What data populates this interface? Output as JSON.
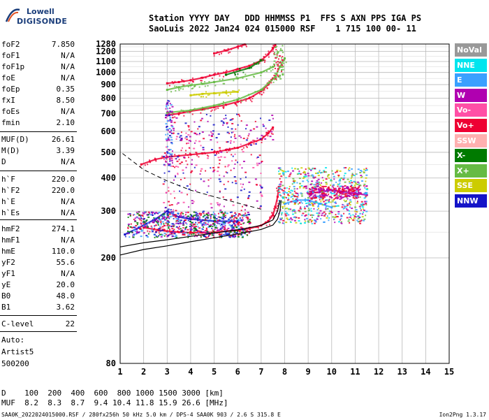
{
  "logo": {
    "top": "Lowell",
    "bottom": "DIGISONDE",
    "icon": "digisonde-logo-icon"
  },
  "header": {
    "line1": "Station YYYY DAY   DDD HHMMSS P1  FFS S AXN PPS IGA PS",
    "line2": "SaoLuis 2022 Jan24 024 015000 RSF    1 715 100 00- 11"
  },
  "params": [
    {
      "name": "foF2",
      "value": "7.850"
    },
    {
      "name": "foF1",
      "value": "N/A"
    },
    {
      "name": "foF1p",
      "value": "N/A"
    },
    {
      "name": "foE",
      "value": "N/A"
    },
    {
      "name": "foEp",
      "value": "0.35"
    },
    {
      "name": "fxI",
      "value": "8.50"
    },
    {
      "name": "foEs",
      "value": "N/A"
    },
    {
      "name": "fmin",
      "value": "2.10"
    },
    {
      "name": "MUF(D)",
      "value": "26.61"
    },
    {
      "name": "M(D)",
      "value": "3.39"
    },
    {
      "name": "D",
      "value": "N/A"
    },
    {
      "name": "h`F",
      "value": "220.0"
    },
    {
      "name": "h`F2",
      "value": "220.0"
    },
    {
      "name": "h`E",
      "value": "N/A"
    },
    {
      "name": "h`Es",
      "value": "N/A"
    },
    {
      "name": "hmF2",
      "value": "274.1"
    },
    {
      "name": "hmF1",
      "value": "N/A"
    },
    {
      "name": "hmE",
      "value": "110.0"
    },
    {
      "name": "yF2",
      "value": "55.6"
    },
    {
      "name": "yF1",
      "value": "N/A"
    },
    {
      "name": "yE",
      "value": "20.0"
    },
    {
      "name": "B0",
      "value": "48.0"
    },
    {
      "name": "B1",
      "value": "3.62"
    },
    {
      "name": "C-level",
      "value": "22"
    }
  ],
  "auto": {
    "label": "Auto:",
    "artist": "Artist5",
    "code": "500200"
  },
  "legend": [
    {
      "label": "NoVal",
      "color": "#999999"
    },
    {
      "label": "NNE",
      "color": "#00e5ee"
    },
    {
      "label": "E",
      "color": "#3aa0ff"
    },
    {
      "label": "W",
      "color": "#b000b0"
    },
    {
      "label": "Vo-",
      "color": "#ff4fa6"
    },
    {
      "label": "Vo+",
      "color": "#ee0033"
    },
    {
      "label": "SSW",
      "color": "#ffb0b0"
    },
    {
      "label": "X-",
      "color": "#007a00"
    },
    {
      "label": "X+",
      "color": "#66bb44"
    },
    {
      "label": "SSE",
      "color": "#cccc00"
    },
    {
      "label": "NNW",
      "color": "#1414c8"
    }
  ],
  "footer": {
    "distance": "D    100  200  400  600  800 1000 1500 3000 [km]",
    "muf": "MUF  8.2  8.3  8.7  9.4 10.4 11.8 15.9 26.6 [MHz]",
    "info": "SAA0K_2022024015000.RSF / 280fx256h 50 kHz 5.0 km / DPS-4 SAA0K 903 / 2.6 S 315.8 E",
    "version": "Ion2Png 1.3.17"
  },
  "chart_data": {
    "type": "scatter",
    "title": "",
    "xlabel": "",
    "ylabel": "",
    "xlim": [
      1,
      15
    ],
    "ylim": [
      80,
      1280
    ],
    "yscale": "log",
    "grid": true,
    "x_ticks": [
      "1",
      "2",
      "3",
      "4",
      "5",
      "6",
      "7",
      "8",
      "9",
      "10",
      "11",
      "12",
      "13",
      "14",
      "15"
    ],
    "y_ticks": [
      "80",
      "200",
      "300",
      "400",
      "500",
      "600",
      "700",
      "800",
      "900",
      "1000",
      "1100",
      "1200",
      "1280"
    ],
    "series": [
      {
        "name": "Vo+",
        "color": "#ee0033",
        "points": [
          [
            2.0,
            260
          ],
          [
            2.6,
            255
          ],
          [
            3.0,
            252
          ],
          [
            3.5,
            250
          ],
          [
            4.0,
            249
          ],
          [
            4.5,
            249
          ],
          [
            5.0,
            250
          ],
          [
            5.5,
            252
          ],
          [
            6.0,
            254
          ],
          [
            6.5,
            258
          ],
          [
            7.0,
            265
          ],
          [
            7.3,
            275
          ],
          [
            7.5,
            290
          ],
          [
            7.6,
            310
          ],
          [
            7.7,
            340
          ],
          [
            7.75,
            370
          ]
        ]
      },
      {
        "name": "Vo+",
        "color": "#ee0033",
        "points": [
          [
            1.9,
            450
          ],
          [
            2.5,
            470
          ],
          [
            3.0,
            480
          ],
          [
            3.5,
            485
          ],
          [
            4.0,
            490
          ],
          [
            4.5,
            495
          ],
          [
            5.0,
            500
          ],
          [
            5.5,
            510
          ],
          [
            6.0,
            520
          ],
          [
            6.5,
            540
          ],
          [
            7.0,
            560
          ],
          [
            7.3,
            590
          ],
          [
            7.5,
            620
          ]
        ]
      },
      {
        "name": "Vo+",
        "color": "#ee0033",
        "points": [
          [
            3.0,
            690
          ],
          [
            3.5,
            700
          ],
          [
            4.0,
            715
          ],
          [
            4.5,
            725
          ],
          [
            5.0,
            740
          ],
          [
            5.5,
            755
          ],
          [
            6.0,
            775
          ],
          [
            6.5,
            800
          ],
          [
            7.0,
            850
          ],
          [
            7.3,
            900
          ],
          [
            7.5,
            950
          ]
        ]
      },
      {
        "name": "Vo+",
        "color": "#ee0033",
        "points": [
          [
            3.0,
            910
          ],
          [
            3.5,
            920
          ],
          [
            4.0,
            935
          ],
          [
            4.5,
            955
          ],
          [
            5.0,
            980
          ],
          [
            5.5,
            1000
          ],
          [
            6.0,
            1030
          ],
          [
            6.5,
            1060
          ],
          [
            7.0,
            1110
          ],
          [
            7.3,
            1170
          ],
          [
            7.5,
            1230
          ],
          [
            7.6,
            1270
          ]
        ]
      },
      {
        "name": "Vo+",
        "color": "#ee0033",
        "points": [
          [
            5.0,
            1180
          ],
          [
            5.5,
            1210
          ],
          [
            6.0,
            1250
          ],
          [
            6.3,
            1275
          ]
        ]
      },
      {
        "name": "X+",
        "color": "#66bb44",
        "points": [
          [
            3.0,
            705
          ],
          [
            4.0,
            720
          ],
          [
            5.0,
            750
          ],
          [
            6.0,
            790
          ],
          [
            7.0,
            860
          ],
          [
            7.6,
            960
          ],
          [
            7.8,
            1050
          ],
          [
            8.0,
            1130
          ]
        ]
      },
      {
        "name": "X+",
        "color": "#66bb44",
        "points": [
          [
            3.0,
            860
          ],
          [
            3.5,
            880
          ],
          [
            4.0,
            895
          ],
          [
            4.5,
            905
          ],
          [
            5.0,
            920
          ],
          [
            6.0,
            950
          ],
          [
            7.0,
            1000
          ],
          [
            7.5,
            1050
          ]
        ]
      },
      {
        "name": "SSE",
        "color": "#cccc00",
        "points": [
          [
            4.0,
            820
          ],
          [
            4.5,
            830
          ],
          [
            5.0,
            835
          ],
          [
            5.5,
            840
          ],
          [
            6.0,
            845
          ]
        ]
      },
      {
        "name": "W",
        "color": "#b000b0",
        "points": [
          [
            9.0,
            350
          ],
          [
            9.5,
            355
          ],
          [
            10.0,
            360
          ],
          [
            10.5,
            355
          ],
          [
            11.0,
            350
          ],
          [
            11.5,
            345
          ]
        ]
      },
      {
        "name": "E",
        "color": "#3aa0ff",
        "points": [
          [
            8.0,
            320
          ],
          [
            8.5,
            330
          ],
          [
            9.0,
            330
          ],
          [
            9.5,
            320
          ],
          [
            10.0,
            310
          ]
        ]
      },
      {
        "name": "NNW",
        "color": "#1414c8",
        "points": [
          [
            1.2,
            245
          ],
          [
            1.8,
            260
          ],
          [
            2.5,
            280
          ],
          [
            3.0,
            300
          ],
          [
            3.5,
            285
          ],
          [
            4.0,
            280
          ],
          [
            5.0,
            275
          ],
          [
            6.0,
            275
          ]
        ]
      },
      {
        "name": "X-",
        "color": "#007a00",
        "points": [
          [
            5.5,
            980
          ],
          [
            6.5,
            1040
          ],
          [
            7.0,
            1110
          ]
        ]
      }
    ]
  }
}
